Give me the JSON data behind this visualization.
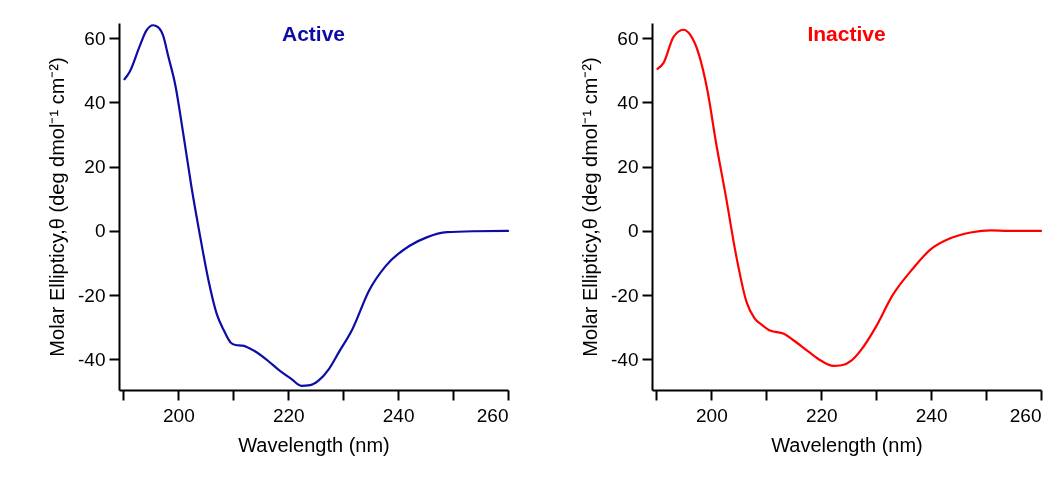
{
  "chart_data": [
    {
      "type": "line",
      "title": "Active",
      "xlabel": "Wavelength (nm)",
      "ylabel": "Molar Ellipticy,θ (deg dmol⁻¹ cm⁻²)",
      "xlim": [
        189.2,
        260
      ],
      "ylim": [
        -49.5,
        64.7
      ],
      "xticks": [
        {
          "value": 190,
          "label": null
        },
        200,
        {
          "value": 210,
          "label": null
        },
        220,
        {
          "value": 230,
          "label": null
        },
        240,
        {
          "value": 250,
          "label": null
        },
        260
      ],
      "yticks": [
        -40,
        -20,
        0,
        20,
        40,
        60
      ],
      "marker": "none",
      "line_style": "solid",
      "x": [
        190.2,
        191.2,
        192.9,
        194.2,
        195.4,
        196.3,
        197.2,
        198.2,
        199.4,
        200.9,
        202.4,
        204.0,
        205.5,
        207.0,
        208.3,
        209.5,
        210.4,
        211.7,
        213.8,
        216.3,
        218.1,
        220.6,
        222.4,
        224.0,
        225.5,
        227.4,
        229.2,
        231.7,
        234.7,
        237.8,
        242.1,
        245.2,
        248.9,
        253.8,
        260
      ],
      "series": [
        {
          "color": "#0d0da6",
          "values": [
            47.2,
            49.7,
            57.2,
            62.4,
            64.0,
            63.4,
            60.9,
            54.1,
            45.8,
            30.2,
            13.6,
            -2.0,
            -15.5,
            -25.9,
            -31.0,
            -34.7,
            -35.5,
            -35.7,
            -37.3,
            -40.4,
            -43.0,
            -46.1,
            -48.2,
            -48.0,
            -46.6,
            -43.0,
            -37.8,
            -30.5,
            -18.6,
            -10.8,
            -4.6,
            -2.0,
            -0.4,
            -0.1,
            0
          ]
        }
      ]
    },
    {
      "type": "line",
      "title": "Inactive",
      "xlabel": "Wavelength (nm)",
      "ylabel": "Molar Ellipticy,θ (deg dmol⁻¹ cm⁻²)",
      "xlim": [
        189.2,
        260
      ],
      "ylim": [
        -49.5,
        64.7
      ],
      "xticks": [
        {
          "value": 190,
          "label": null
        },
        200,
        {
          "value": 210,
          "label": null
        },
        220,
        {
          "value": 230,
          "label": null
        },
        240,
        {
          "value": 250,
          "label": null
        },
        260
      ],
      "yticks": [
        -40,
        -20,
        0,
        20,
        40,
        60
      ],
      "marker": "none",
      "line_style": "solid",
      "x": [
        190.2,
        191.3,
        193.1,
        194.9,
        196.2,
        197.7,
        199.3,
        200.8,
        202.7,
        204.5,
        206.4,
        207.9,
        209.2,
        210.7,
        213.2,
        215.0,
        217.5,
        220.0,
        222.2,
        223.7,
        225.6,
        227.4,
        229.9,
        233.0,
        236.7,
        239.8,
        243.5,
        247.2,
        250.9,
        254.0,
        260
      ],
      "series": [
        {
          "color": "#ff0000",
          "values": [
            50.4,
            52.3,
            60.3,
            62.6,
            60.9,
            55.1,
            43.6,
            28.0,
            10.2,
            -7.5,
            -22.1,
            -27.3,
            -29.2,
            -31.0,
            -32.0,
            -34.1,
            -37.3,
            -40.4,
            -42.0,
            -41.8,
            -40.2,
            -36.7,
            -30.0,
            -20.0,
            -11.7,
            -5.9,
            -2.3,
            -0.5,
            0.2,
            0,
            0
          ]
        }
      ]
    }
  ]
}
